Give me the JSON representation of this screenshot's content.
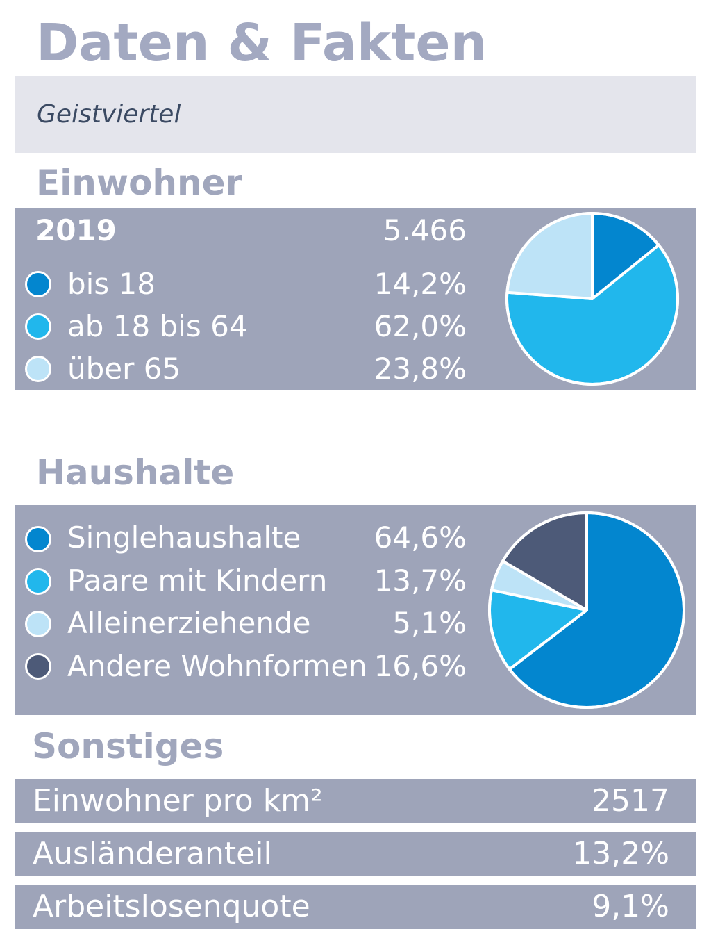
{
  "title": "Daten & Fakten",
  "subtitle": "Geistviertel",
  "einwohner": {
    "heading": "Einwohner",
    "year": "2019",
    "total": "5.466",
    "items": [
      {
        "label": "bis 18",
        "value": "14,2%",
        "color": "#0386cf"
      },
      {
        "label": "ab 18 bis 64",
        "value": "62,0%",
        "color": "#21b7ec"
      },
      {
        "label": "über 65",
        "value": "23,8%",
        "color": "#bde3f7"
      }
    ]
  },
  "haushalte": {
    "heading": "Haushalte",
    "items": [
      {
        "label": "Singlehaushalte",
        "value": "64,6%",
        "color": "#0386cf"
      },
      {
        "label": "Paare mit Kindern",
        "value": "13,7%",
        "color": "#21b7ec"
      },
      {
        "label": "Alleinerziehende",
        "value": "5,1%",
        "color": "#bde3f7"
      },
      {
        "label": "Andere Wohnformen",
        "value": "16,6%",
        "color": "#4d5a78"
      }
    ]
  },
  "sonstiges": {
    "heading": "Sonstiges",
    "items": [
      {
        "label": "Einwohner pro km²",
        "value": "2517"
      },
      {
        "label": "Ausländeranteil",
        "value": "13,2%"
      },
      {
        "label": "Arbeitslosenquote",
        "value": "9,1%"
      }
    ]
  },
  "chart_data": [
    {
      "type": "pie",
      "categories": [
        "bis 18",
        "ab 18 bis 64",
        "über 65"
      ],
      "values": [
        14.2,
        62.0,
        23.8
      ],
      "colors": [
        "#0386cf",
        "#21b7ec",
        "#bde3f7"
      ]
    },
    {
      "type": "pie",
      "categories": [
        "Singlehaushalte",
        "Paare mit Kindern",
        "Alleinerziehende",
        "Andere Wohnformen"
      ],
      "values": [
        64.6,
        13.7,
        5.1,
        16.6
      ],
      "colors": [
        "#0386cf",
        "#21b7ec",
        "#bde3f7",
        "#4d5a78"
      ]
    }
  ]
}
